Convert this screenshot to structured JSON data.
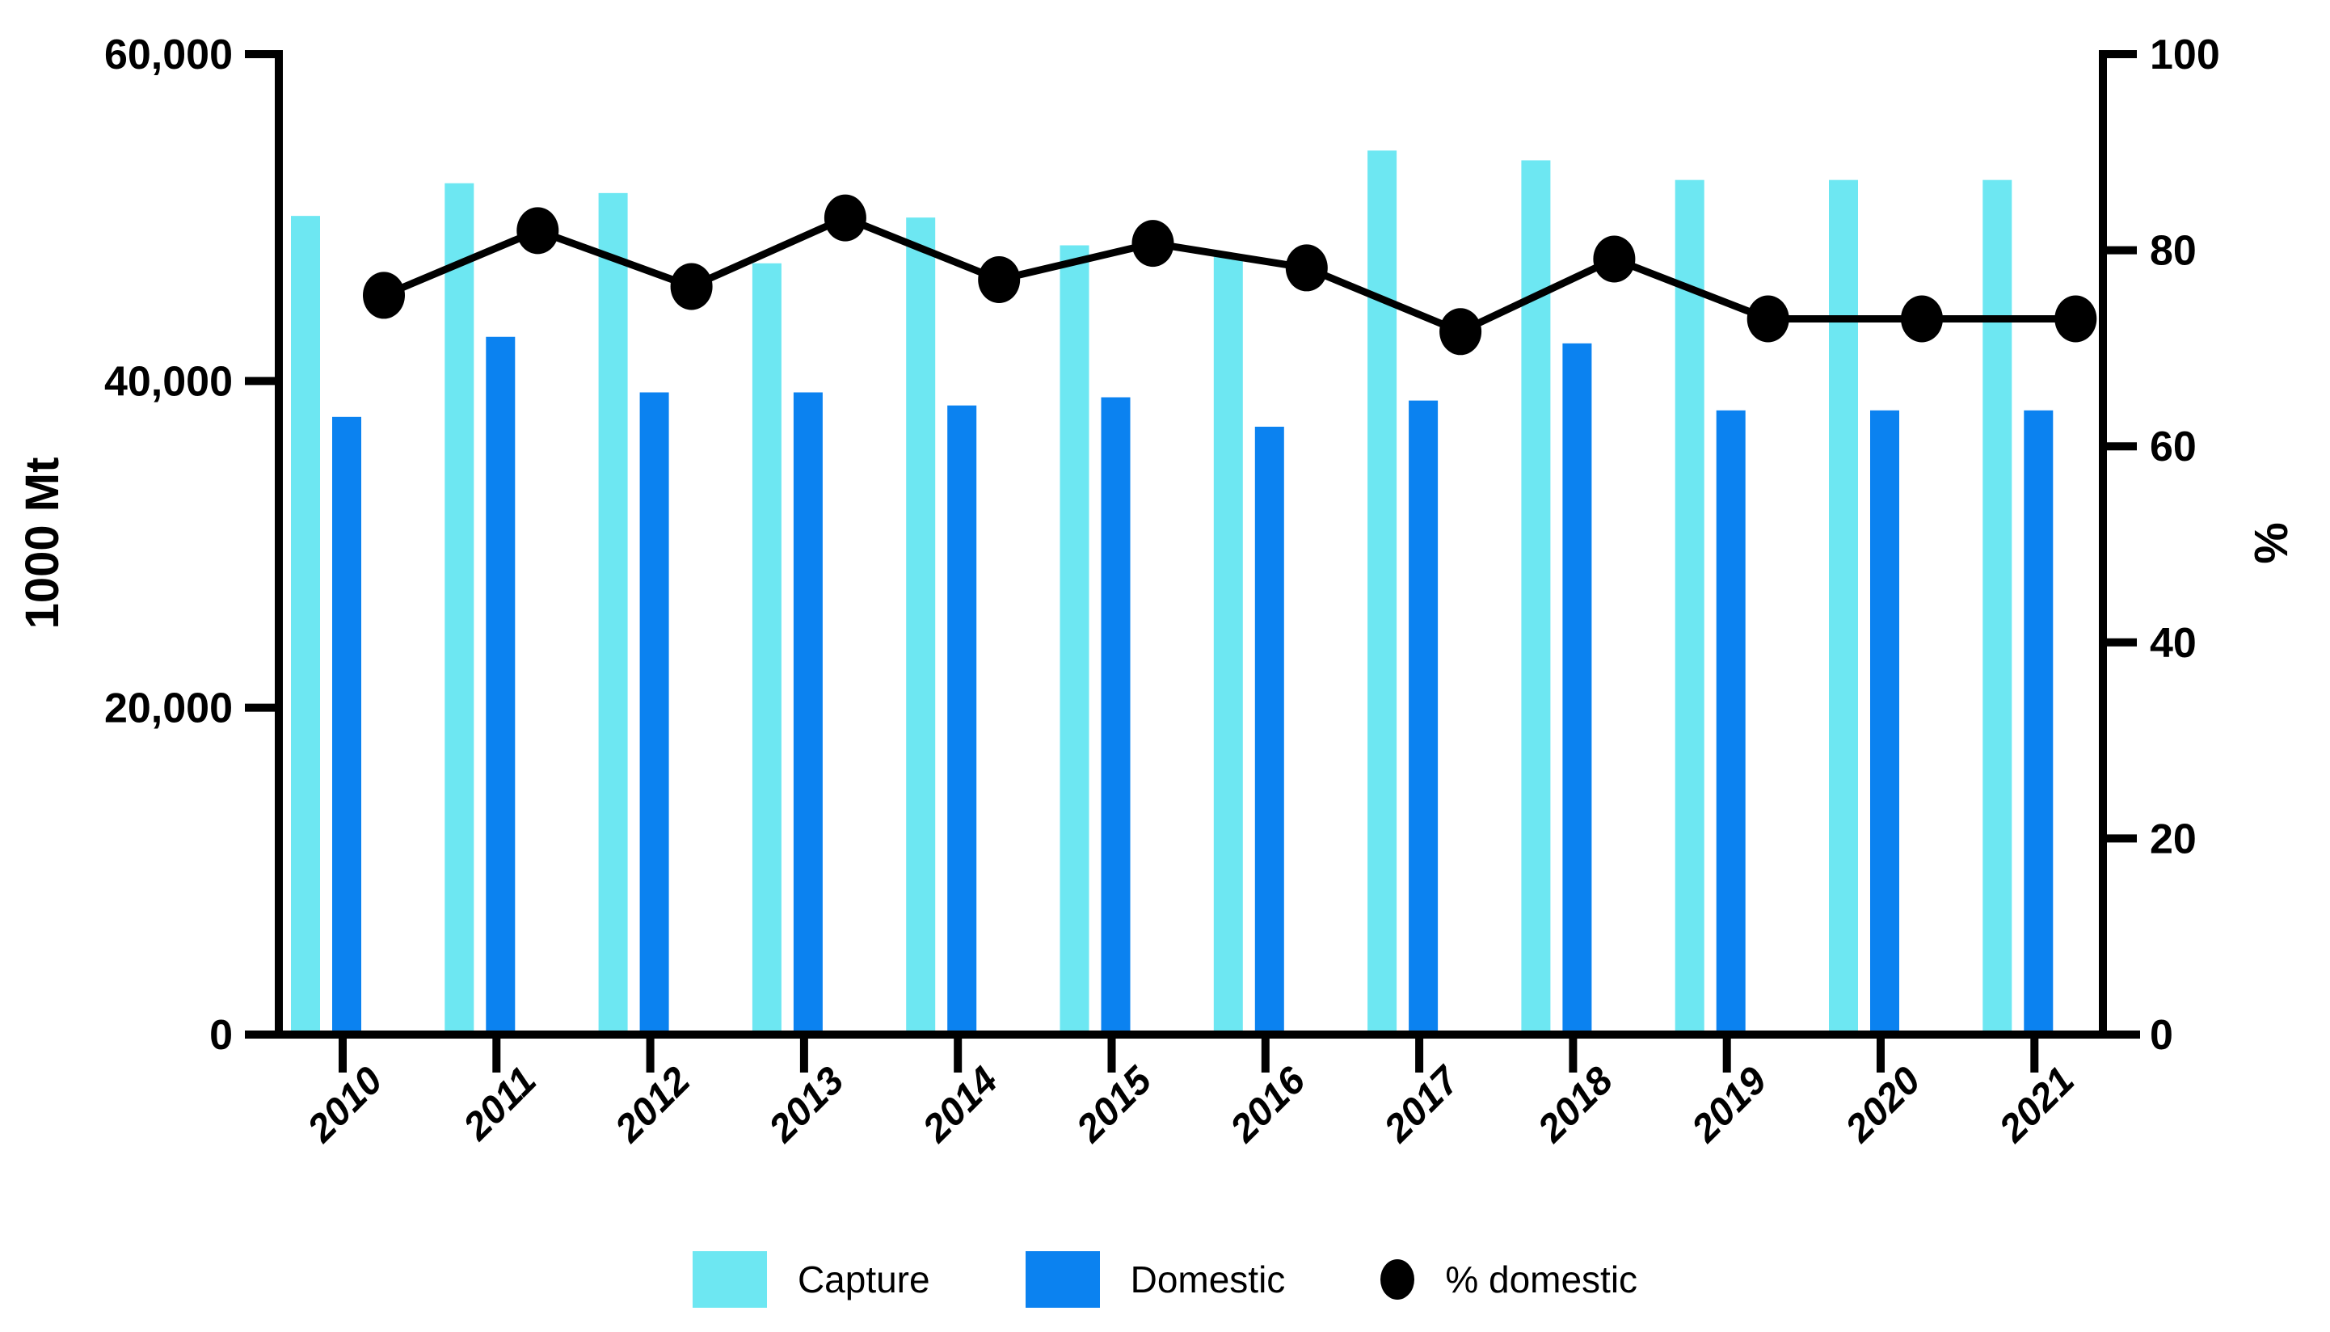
{
  "chart_data": {
    "type": "combo",
    "categories": [
      "2010",
      "2011",
      "2012",
      "2013",
      "2014",
      "2015",
      "2016",
      "2017",
      "2018",
      "2019",
      "2020",
      "2021"
    ],
    "series": [
      {
        "name": "Capture",
        "render": "bar",
        "axis": "left",
        "color": "#6de7f2",
        "values": [
          50100,
          52100,
          51500,
          47200,
          50000,
          48300,
          47600,
          54100,
          53500,
          52300,
          52300,
          52300
        ]
      },
      {
        "name": "Domestic",
        "render": "bar",
        "axis": "left",
        "color": "#0b82f0",
        "values": [
          37800,
          42700,
          39300,
          39300,
          38500,
          39000,
          37200,
          38800,
          42300,
          38200,
          38200,
          38200
        ]
      },
      {
        "name": "% domestic",
        "render": "line",
        "axis": "right",
        "color": "#000000",
        "values": [
          75.4,
          82.0,
          76.3,
          83.3,
          77.0,
          80.7,
          78.2,
          71.7,
          79.1,
          73.0,
          73.0,
          73.0
        ]
      }
    ],
    "left_axis": {
      "title": "1000 Mt",
      "lim": [
        0,
        60000
      ],
      "ticks": [
        {
          "value": 0,
          "label": "0"
        },
        {
          "value": 20000,
          "label": "20,000"
        },
        {
          "value": 40000,
          "label": "40,000"
        },
        {
          "value": 60000,
          "label": "60,000"
        }
      ]
    },
    "right_axis": {
      "title": "%",
      "lim": [
        0,
        100
      ],
      "ticks": [
        {
          "value": 0,
          "label": "0"
        },
        {
          "value": 20,
          "label": "20"
        },
        {
          "value": 40,
          "label": "40"
        },
        {
          "value": 60,
          "label": "60"
        },
        {
          "value": 80,
          "label": "80"
        },
        {
          "value": 100,
          "label": "100"
        }
      ]
    },
    "grid": false,
    "legend_position": "bottom",
    "legend": [
      {
        "label": "Capture",
        "marker": "rect",
        "color": "#6de7f2"
      },
      {
        "label": "Domestic",
        "marker": "rect",
        "color": "#0b82f0"
      },
      {
        "label": "% domestic",
        "marker": "dot",
        "color": "#000000"
      }
    ]
  }
}
